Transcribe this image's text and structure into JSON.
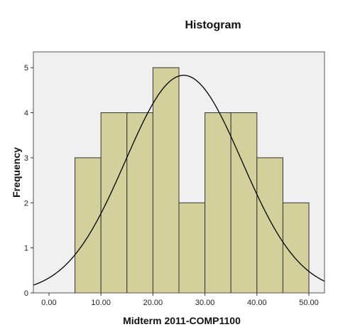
{
  "chart_data": {
    "type": "bar",
    "title": "Histogram",
    "xlabel": "Midterm 2011-COMP1100",
    "ylabel": "Frequency",
    "bins": [
      {
        "start": 5,
        "end": 10,
        "count": 3
      },
      {
        "start": 10,
        "end": 15,
        "count": 4
      },
      {
        "start": 15,
        "end": 20,
        "count": 4
      },
      {
        "start": 20,
        "end": 25,
        "count": 5
      },
      {
        "start": 25,
        "end": 30,
        "count": 2
      },
      {
        "start": 30,
        "end": 35,
        "count": 4
      },
      {
        "start": 35,
        "end": 40,
        "count": 4
      },
      {
        "start": 40,
        "end": 45,
        "count": 3
      },
      {
        "start": 45,
        "end": 50,
        "count": 2
      }
    ],
    "xlim": [
      -3,
      53
    ],
    "ylim": [
      0,
      5.35
    ],
    "x_ticks": [
      0,
      10,
      20,
      30,
      40,
      50
    ],
    "x_tick_labels": [
      "0.00",
      "10.00",
      "20.00",
      "30.00",
      "40.00",
      "50.00"
    ],
    "y_ticks": [
      0,
      1,
      2,
      3,
      4,
      5
    ],
    "y_tick_labels": [
      "0",
      "1",
      "2",
      "3",
      "4",
      "5"
    ],
    "normal_curve": {
      "mean": 25.9,
      "sd": 11.2,
      "peak_frequency": 4.83
    },
    "grid": false,
    "colors": {
      "plot_background": "#f0f0f0",
      "bar_fill": "#d4d09b",
      "bar_stroke": "#333333",
      "curve": "#000000"
    }
  }
}
